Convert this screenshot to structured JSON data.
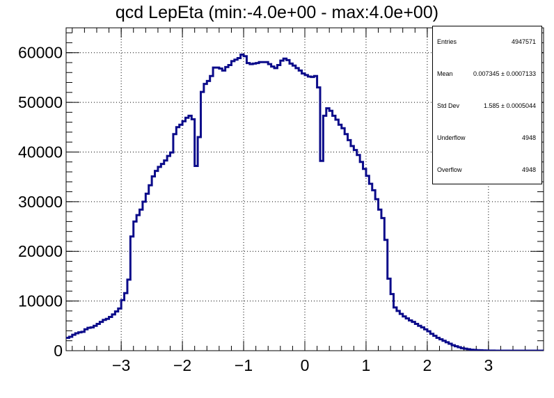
{
  "title": "qcd LepEta (min:-4.0e+00 - max:4.0e+00)",
  "stats": {
    "rows": [
      {
        "label": "Entries",
        "value": "4947571"
      },
      {
        "label": "Mean",
        "value": "0.007345 ± 0.0007133"
      },
      {
        "label": "Std Dev",
        "value": "1.585 ± 0.0005044"
      },
      {
        "label": "Underflow",
        "value": "4948"
      },
      {
        "label": "Overflow",
        "value": "4948"
      }
    ]
  },
  "colors": {
    "line": "#0b0b8a",
    "grid": "#000000"
  },
  "chart_data": {
    "type": "line",
    "step": true,
    "grid": true,
    "xlim": [
      -3.9,
      3.9
    ],
    "ylim": [
      0,
      65000
    ],
    "xticks": [
      -3,
      -2,
      -1,
      0,
      1,
      2,
      3
    ],
    "xtick_labels": [
      "−3",
      "−2",
      "−1",
      "0",
      "1",
      "2",
      "3"
    ],
    "yticks": [
      0,
      10000,
      20000,
      30000,
      40000,
      50000,
      60000
    ],
    "ytick_labels": [
      "0",
      "10000",
      "20000",
      "30000",
      "40000",
      "50000",
      "60000"
    ],
    "bin_width": 0.05,
    "bin_edges_start": -3.9,
    "values": [
      2600,
      2800,
      3200,
      3500,
      3700,
      3800,
      4300,
      4600,
      4700,
      5000,
      5400,
      5800,
      6200,
      6400,
      6800,
      7300,
      7900,
      8500,
      10200,
      11600,
      14300,
      23000,
      26000,
      27300,
      28400,
      30000,
      31600,
      33300,
      35100,
      36200,
      37000,
      37600,
      38300,
      39200,
      39900,
      43600,
      45000,
      45500,
      46200,
      46900,
      47300,
      46600,
      37200,
      43000,
      52100,
      53700,
      54300,
      55300,
      57000,
      57000,
      56800,
      56400,
      57100,
      57500,
      58300,
      58600,
      58900,
      59600,
      59300,
      57900,
      57700,
      57800,
      57900,
      58100,
      58100,
      58100,
      57700,
      57200,
      56900,
      57500,
      58400,
      58800,
      58500,
      57800,
      57400,
      56900,
      56400,
      55800,
      55500,
      55200,
      55100,
      55300,
      53000,
      38200,
      47300,
      48800,
      48300,
      47300,
      46500,
      45500,
      44800,
      43600,
      42400,
      41200,
      40400,
      39400,
      38000,
      36600,
      35200,
      33600,
      32300,
      30500,
      28400,
      26700,
      22300,
      14500,
      11400,
      8700,
      8000,
      7400,
      6900,
      6500,
      6100,
      5800,
      5400,
      5000,
      4700,
      4300,
      3900,
      3400,
      3000,
      2600,
      2300,
      2000,
      1700,
      1400,
      1100,
      900,
      700,
      500,
      400,
      300,
      200,
      150,
      100,
      80,
      60,
      40,
      20,
      10,
      5,
      3,
      2,
      1,
      1,
      1,
      1,
      1,
      1,
      1,
      1,
      1,
      1,
      1,
      1,
      1
    ]
  }
}
